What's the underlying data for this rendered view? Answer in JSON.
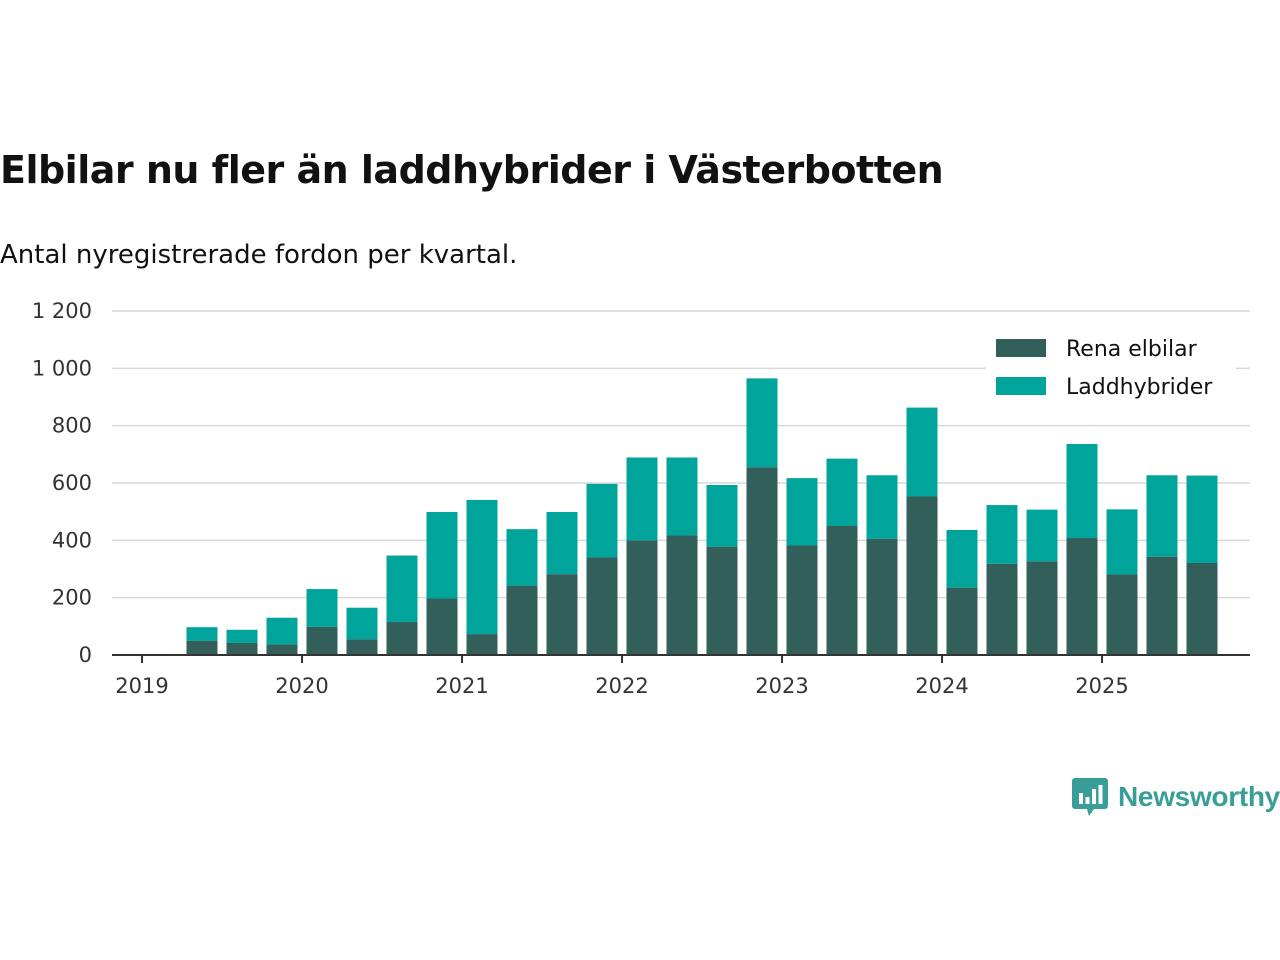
{
  "chart_data": {
    "type": "bar",
    "stacked": true,
    "title": "Elbilar nu fler än laddhybrider i Västerbotten",
    "subtitle": "Antal nyregistrerade fordon per kvartal.",
    "xlabel": "",
    "ylabel": "",
    "ylim": [
      0,
      1200
    ],
    "yticks": [
      0,
      200,
      400,
      600,
      800,
      1000,
      1200
    ],
    "ytick_labels": [
      "0",
      "200",
      "400",
      "600",
      "800",
      "1 000",
      "1 200"
    ],
    "xticks": [
      "2019",
      "2020",
      "2021",
      "2022",
      "2023",
      "2024",
      "2025"
    ],
    "categories": [
      "2019 Q2",
      "2019 Q3",
      "2019 Q4",
      "2020 Q1",
      "2020 Q2",
      "2020 Q3",
      "2020 Q4",
      "2021 Q1",
      "2021 Q2",
      "2021 Q3",
      "2021 Q4",
      "2022 Q1",
      "2022 Q2",
      "2022 Q3",
      "2022 Q4",
      "2023 Q1",
      "2023 Q2",
      "2023 Q3",
      "2023 Q4",
      "2024 Q1",
      "2024 Q2",
      "2024 Q3",
      "2024 Q4",
      "2025 Q1",
      "2025 Q2",
      "2025 Q3"
    ],
    "series": [
      {
        "name": "Rena elbilar",
        "color": "#335f5b",
        "values": [
          50,
          42,
          37,
          98,
          55,
          115,
          197,
          73,
          242,
          282,
          340,
          400,
          417,
          378,
          655,
          382,
          450,
          405,
          553,
          235,
          318,
          327,
          408,
          281,
          343,
          321
        ]
      },
      {
        "name": "Laddhybrider",
        "color": "#00a49a",
        "values": [
          47,
          46,
          93,
          132,
          110,
          232,
          302,
          468,
          197,
          217,
          257,
          289,
          272,
          215,
          310,
          235,
          235,
          222,
          310,
          201,
          205,
          180,
          328,
          227,
          284,
          305
        ]
      }
    ],
    "legend_position": "top-right",
    "grid": true
  },
  "logo": {
    "text": "Newsworthy",
    "color": "#3a9e98"
  }
}
